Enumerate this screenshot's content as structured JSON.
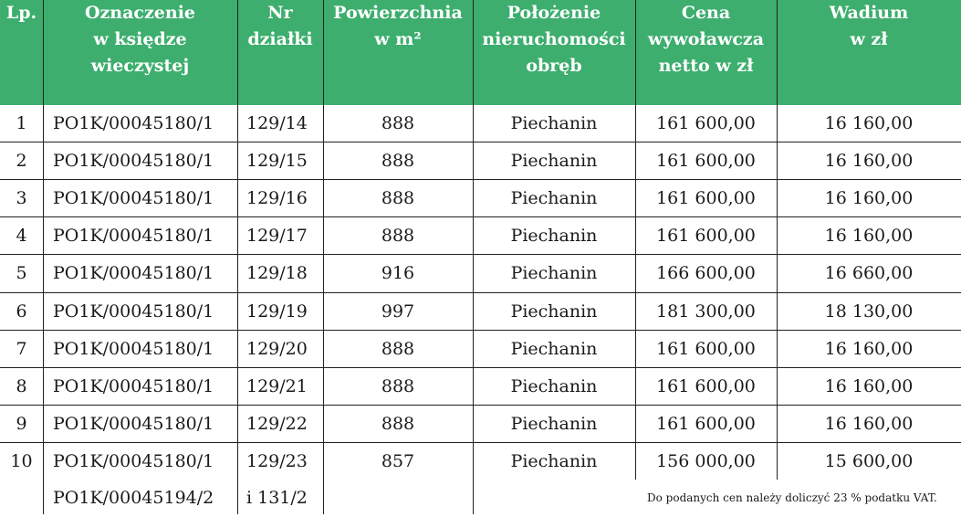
{
  "headers": {
    "lp": "Lp.",
    "ksiega": [
      "Oznaczenie",
      "w księdze",
      "wieczystej"
    ],
    "nr": [
      "Nr",
      "działki"
    ],
    "pow": [
      "Powierzchnia",
      "w m²"
    ],
    "obreb": [
      "Położenie",
      "nieruchomości",
      "obręb"
    ],
    "cena": [
      "Cena",
      "wywoławcza",
      "netto w zł"
    ],
    "wadium": [
      "Wadium",
      "w zł"
    ]
  },
  "rows": [
    {
      "lp": "1",
      "ksiega": "PO1K/00045180/1",
      "nr": "129/14",
      "pow": "888",
      "obreb": "Piechanin",
      "cena": "161 600,00",
      "wadium": "16 160,00"
    },
    {
      "lp": "2",
      "ksiega": "PO1K/00045180/1",
      "nr": "129/15",
      "pow": "888",
      "obreb": "Piechanin",
      "cena": "161 600,00",
      "wadium": "16 160,00"
    },
    {
      "lp": "3",
      "ksiega": "PO1K/00045180/1",
      "nr": "129/16",
      "pow": "888",
      "obreb": "Piechanin",
      "cena": "161 600,00",
      "wadium": "16 160,00"
    },
    {
      "lp": "4",
      "ksiega": "PO1K/00045180/1",
      "nr": "129/17",
      "pow": "888",
      "obreb": "Piechanin",
      "cena": "161 600,00",
      "wadium": "16 160,00"
    },
    {
      "lp": "5",
      "ksiega": "PO1K/00045180/1",
      "nr": "129/18",
      "pow": "916",
      "obreb": "Piechanin",
      "cena": "166 600,00",
      "wadium": "16 660,00"
    },
    {
      "lp": "6",
      "ksiega": "PO1K/00045180/1",
      "nr": "129/19",
      "pow": "997",
      "obreb": "Piechanin",
      "cena": "181 300,00",
      "wadium": "18 130,00"
    },
    {
      "lp": "7",
      "ksiega": "PO1K/00045180/1",
      "nr": "129/20",
      "pow": "888",
      "obreb": "Piechanin",
      "cena": "161 600,00",
      "wadium": "16 160,00"
    },
    {
      "lp": "8",
      "ksiega": "PO1K/00045180/1",
      "nr": "129/21",
      "pow": "888",
      "obreb": "Piechanin",
      "cena": "161 600,00",
      "wadium": "16 160,00"
    },
    {
      "lp": "9",
      "ksiega": "PO1K/00045180/1",
      "nr": "129/22",
      "pow": "888",
      "obreb": "Piechanin",
      "cena": "161 600,00",
      "wadium": "16 160,00"
    },
    {
      "lp": "10",
      "ksiega": "PO1K/00045180/1",
      "nr": "129/23",
      "pow": "857",
      "obreb": "Piechanin",
      "cena": "156 000,00",
      "wadium": "15 600,00"
    }
  ],
  "extra": {
    "ksiega": "PO1K/00045194/2",
    "nr": "i 131/2"
  },
  "note": "Do podanych cen należy doliczyć 23 % podatku VAT.",
  "colors": {
    "header_bg": "#3dae6e",
    "header_text": "#ffffff"
  }
}
